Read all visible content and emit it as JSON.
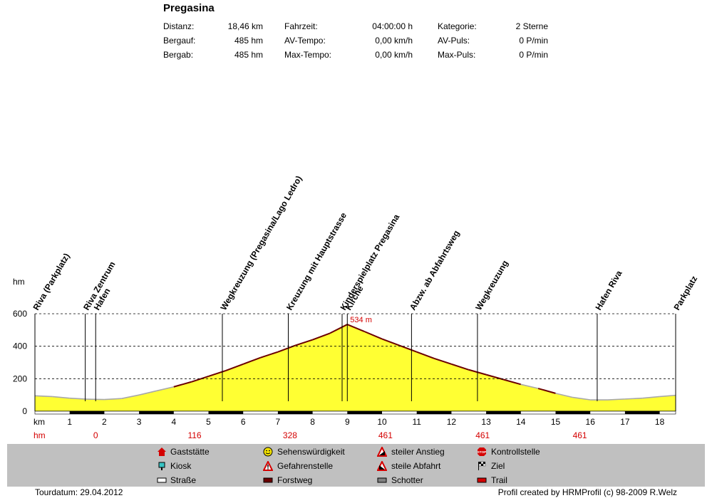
{
  "title": "Pregasina",
  "stats": [
    {
      "label": "Distanz:",
      "value": "18,46 km"
    },
    {
      "label": "Bergauf:",
      "value": "485 hm"
    },
    {
      "label": "Bergab:",
      "value": "485 hm"
    },
    {
      "label": "Fahrzeit:",
      "value": "04:00:00 h"
    },
    {
      "label": "AV-Tempo:",
      "value": "0,00 km/h"
    },
    {
      "label": "Max-Tempo:",
      "value": "0,00 km/h"
    },
    {
      "label": "Kategorie:",
      "value": "2 Sterne"
    },
    {
      "label": "AV-Puls:",
      "value": "0 P/min"
    },
    {
      "label": "Max-Puls:",
      "value": "0 P/min"
    }
  ],
  "colors": {
    "fill": "#ffff33",
    "steep": "#6b0000",
    "grid": "#000000",
    "red": "#d40000",
    "legend_bg": "#c0c0c0"
  },
  "chart_data": {
    "type": "area",
    "ylabel": "hm",
    "xlabel": "km",
    "ylim": [
      0,
      600
    ],
    "xlim": [
      0,
      18.46
    ],
    "yticks": [
      0,
      200,
      400,
      600
    ],
    "xticks": [
      1,
      2,
      3,
      4,
      5,
      6,
      7,
      8,
      9,
      10,
      11,
      12,
      13,
      14,
      15,
      16,
      17,
      18
    ],
    "x": [
      0,
      0.5,
      1,
      1.5,
      2,
      2.5,
      3,
      3.5,
      4,
      4.5,
      5,
      5.5,
      6,
      6.5,
      7,
      7.5,
      8,
      8.5,
      9,
      9.5,
      10,
      10.5,
      11,
      11.5,
      12,
      12.5,
      13,
      13.5,
      14,
      14.5,
      15,
      15.5,
      16,
      16.5,
      17,
      17.5,
      18,
      18.46
    ],
    "elevation": [
      95,
      90,
      80,
      74,
      72,
      78,
      100,
      125,
      150,
      180,
      215,
      250,
      290,
      330,
      365,
      405,
      440,
      480,
      534,
      490,
      445,
      405,
      365,
      325,
      290,
      255,
      225,
      195,
      165,
      140,
      110,
      85,
      70,
      70,
      75,
      80,
      90,
      98
    ],
    "max_label": "534 m",
    "waypoints": [
      {
        "km": 0,
        "name": "Riva (Parkplatz)"
      },
      {
        "km": 1.45,
        "name": "Riva Zentrum"
      },
      {
        "km": 1.75,
        "name": "Hafen"
      },
      {
        "km": 5.4,
        "name": "Wegkreuzung (Pregasina/Lago Ledro)"
      },
      {
        "km": 7.3,
        "name": "Kreuzung mit Hauptstrasse"
      },
      {
        "km": 8.85,
        "name": "Kinderspielplatz Pregasina"
      },
      {
        "km": 9.0,
        "name": "Kirche"
      },
      {
        "km": 10.85,
        "name": "Abzw. ab Abfahrtsweg"
      },
      {
        "km": 12.75,
        "name": "Wegkreuzung"
      },
      {
        "km": 16.2,
        "name": "Hafen Riva"
      },
      {
        "km": 18.46,
        "name": "Parkplatz"
      }
    ],
    "hm_values": [
      {
        "km": 1.75,
        "value": "0"
      },
      {
        "km": 4.6,
        "value": "116"
      },
      {
        "km": 7.35,
        "value": "328"
      },
      {
        "km": 10.1,
        "value": "461"
      },
      {
        "km": 12.9,
        "value": "461"
      },
      {
        "km": 15.7,
        "value": "461"
      }
    ],
    "bars": [
      {
        "from": 1,
        "to": 2
      },
      {
        "from": 3,
        "to": 4
      },
      {
        "from": 5,
        "to": 6
      },
      {
        "from": 7,
        "to": 8
      },
      {
        "from": 9,
        "to": 10
      },
      {
        "from": 11,
        "to": 12
      },
      {
        "from": 13,
        "to": 14
      },
      {
        "from": 15,
        "to": 16
      },
      {
        "from": 17,
        "to": 18
      }
    ]
  },
  "legend": [
    {
      "icon": "gaststaette-icon",
      "label": "Gaststätte"
    },
    {
      "icon": "kiosk-icon",
      "label": "Kiosk"
    },
    {
      "icon": "strasse-icon",
      "label": "Straße"
    },
    {
      "icon": "sehenswuerdigkeit-icon",
      "label": "Sehenswürdigkeit"
    },
    {
      "icon": "gefahrenstelle-icon",
      "label": "Gefahrenstelle"
    },
    {
      "icon": "forstweg-icon",
      "label": "Forstweg"
    },
    {
      "icon": "steiler-anstieg-icon",
      "label": "steiler Anstieg"
    },
    {
      "icon": "steile-abfahrt-icon",
      "label": "steile Abfahrt"
    },
    {
      "icon": "schotter-icon",
      "label": "Schotter"
    },
    {
      "icon": "kontrollstelle-icon",
      "label": "Kontrollstelle"
    },
    {
      "icon": "ziel-icon",
      "label": "Ziel"
    },
    {
      "icon": "trail-icon",
      "label": "Trail"
    }
  ],
  "footer": {
    "left": "Tourdatum: 29.04.2012",
    "right": "Profil created by HRMProfil (c) 98-2009 R.Welz"
  }
}
